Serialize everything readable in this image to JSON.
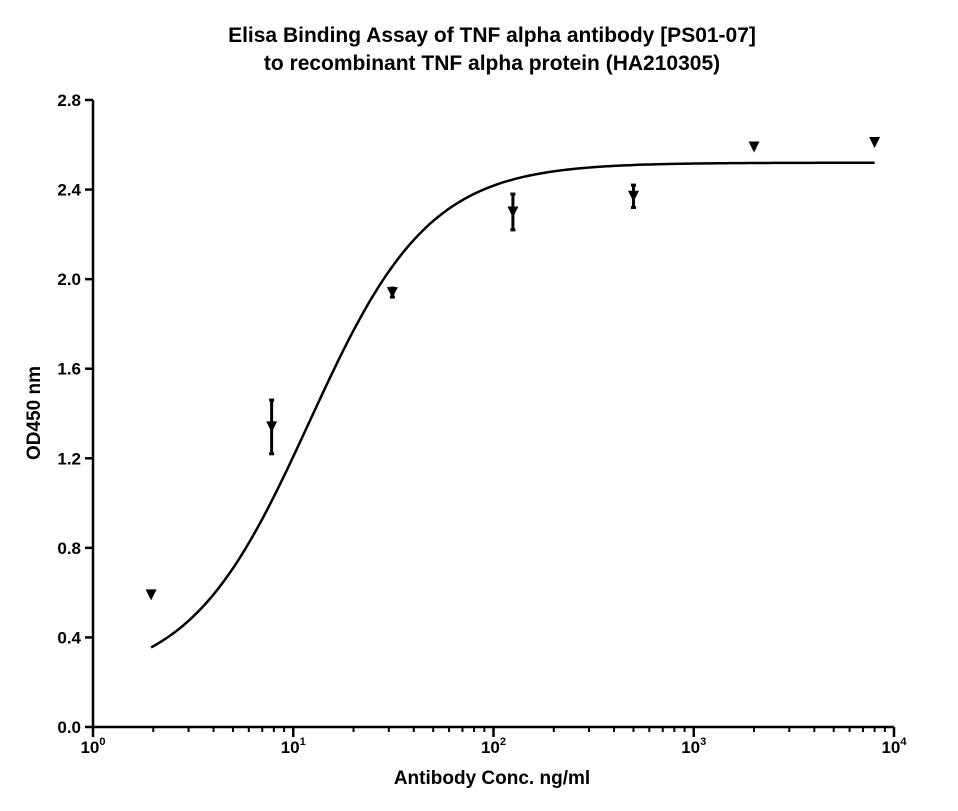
{
  "chart_data": {
    "type": "scatter",
    "title": "Elisa Binding Assay of TNF alpha antibody [PS01-07]",
    "subtitle": "to recombinant TNF alpha protein (HA210305)",
    "xlabel": "Antibody Conc. ng/ml",
    "ylabel": "OD450 nm",
    "x_scale": "log",
    "xlim": [
      1,
      10000
    ],
    "ylim": [
      0,
      2.8
    ],
    "x_ticks": [
      {
        "base": "10",
        "exp": "0"
      },
      {
        "base": "10",
        "exp": "1"
      },
      {
        "base": "10",
        "exp": "2"
      },
      {
        "base": "10",
        "exp": "3"
      },
      {
        "base": "10",
        "exp": "4"
      }
    ],
    "y_ticks": [
      "0.0",
      "0.4",
      "0.8",
      "1.2",
      "1.6",
      "2.0",
      "2.4",
      "2.8"
    ],
    "grid": false,
    "series": [
      {
        "marker": "triangle-down",
        "color": "#000000",
        "points": [
          {
            "x": 1.95,
            "y": 0.59,
            "err": 0.0
          },
          {
            "x": 7.8,
            "y": 1.34,
            "err": 0.12
          },
          {
            "x": 31.25,
            "y": 1.94,
            "err": 0.02
          },
          {
            "x": 125,
            "y": 2.3,
            "err": 0.08
          },
          {
            "x": 500,
            "y": 2.37,
            "err": 0.05
          },
          {
            "x": 2000,
            "y": 2.59,
            "err": 0.0
          },
          {
            "x": 8000,
            "y": 2.61,
            "err": 0.0
          }
        ]
      }
    ],
    "fit_curve": {
      "model": "4PL",
      "bottom": 0.2,
      "top": 2.52,
      "ec50": 12,
      "hill": 1.45,
      "x_range": [
        1.95,
        8000
      ]
    }
  }
}
